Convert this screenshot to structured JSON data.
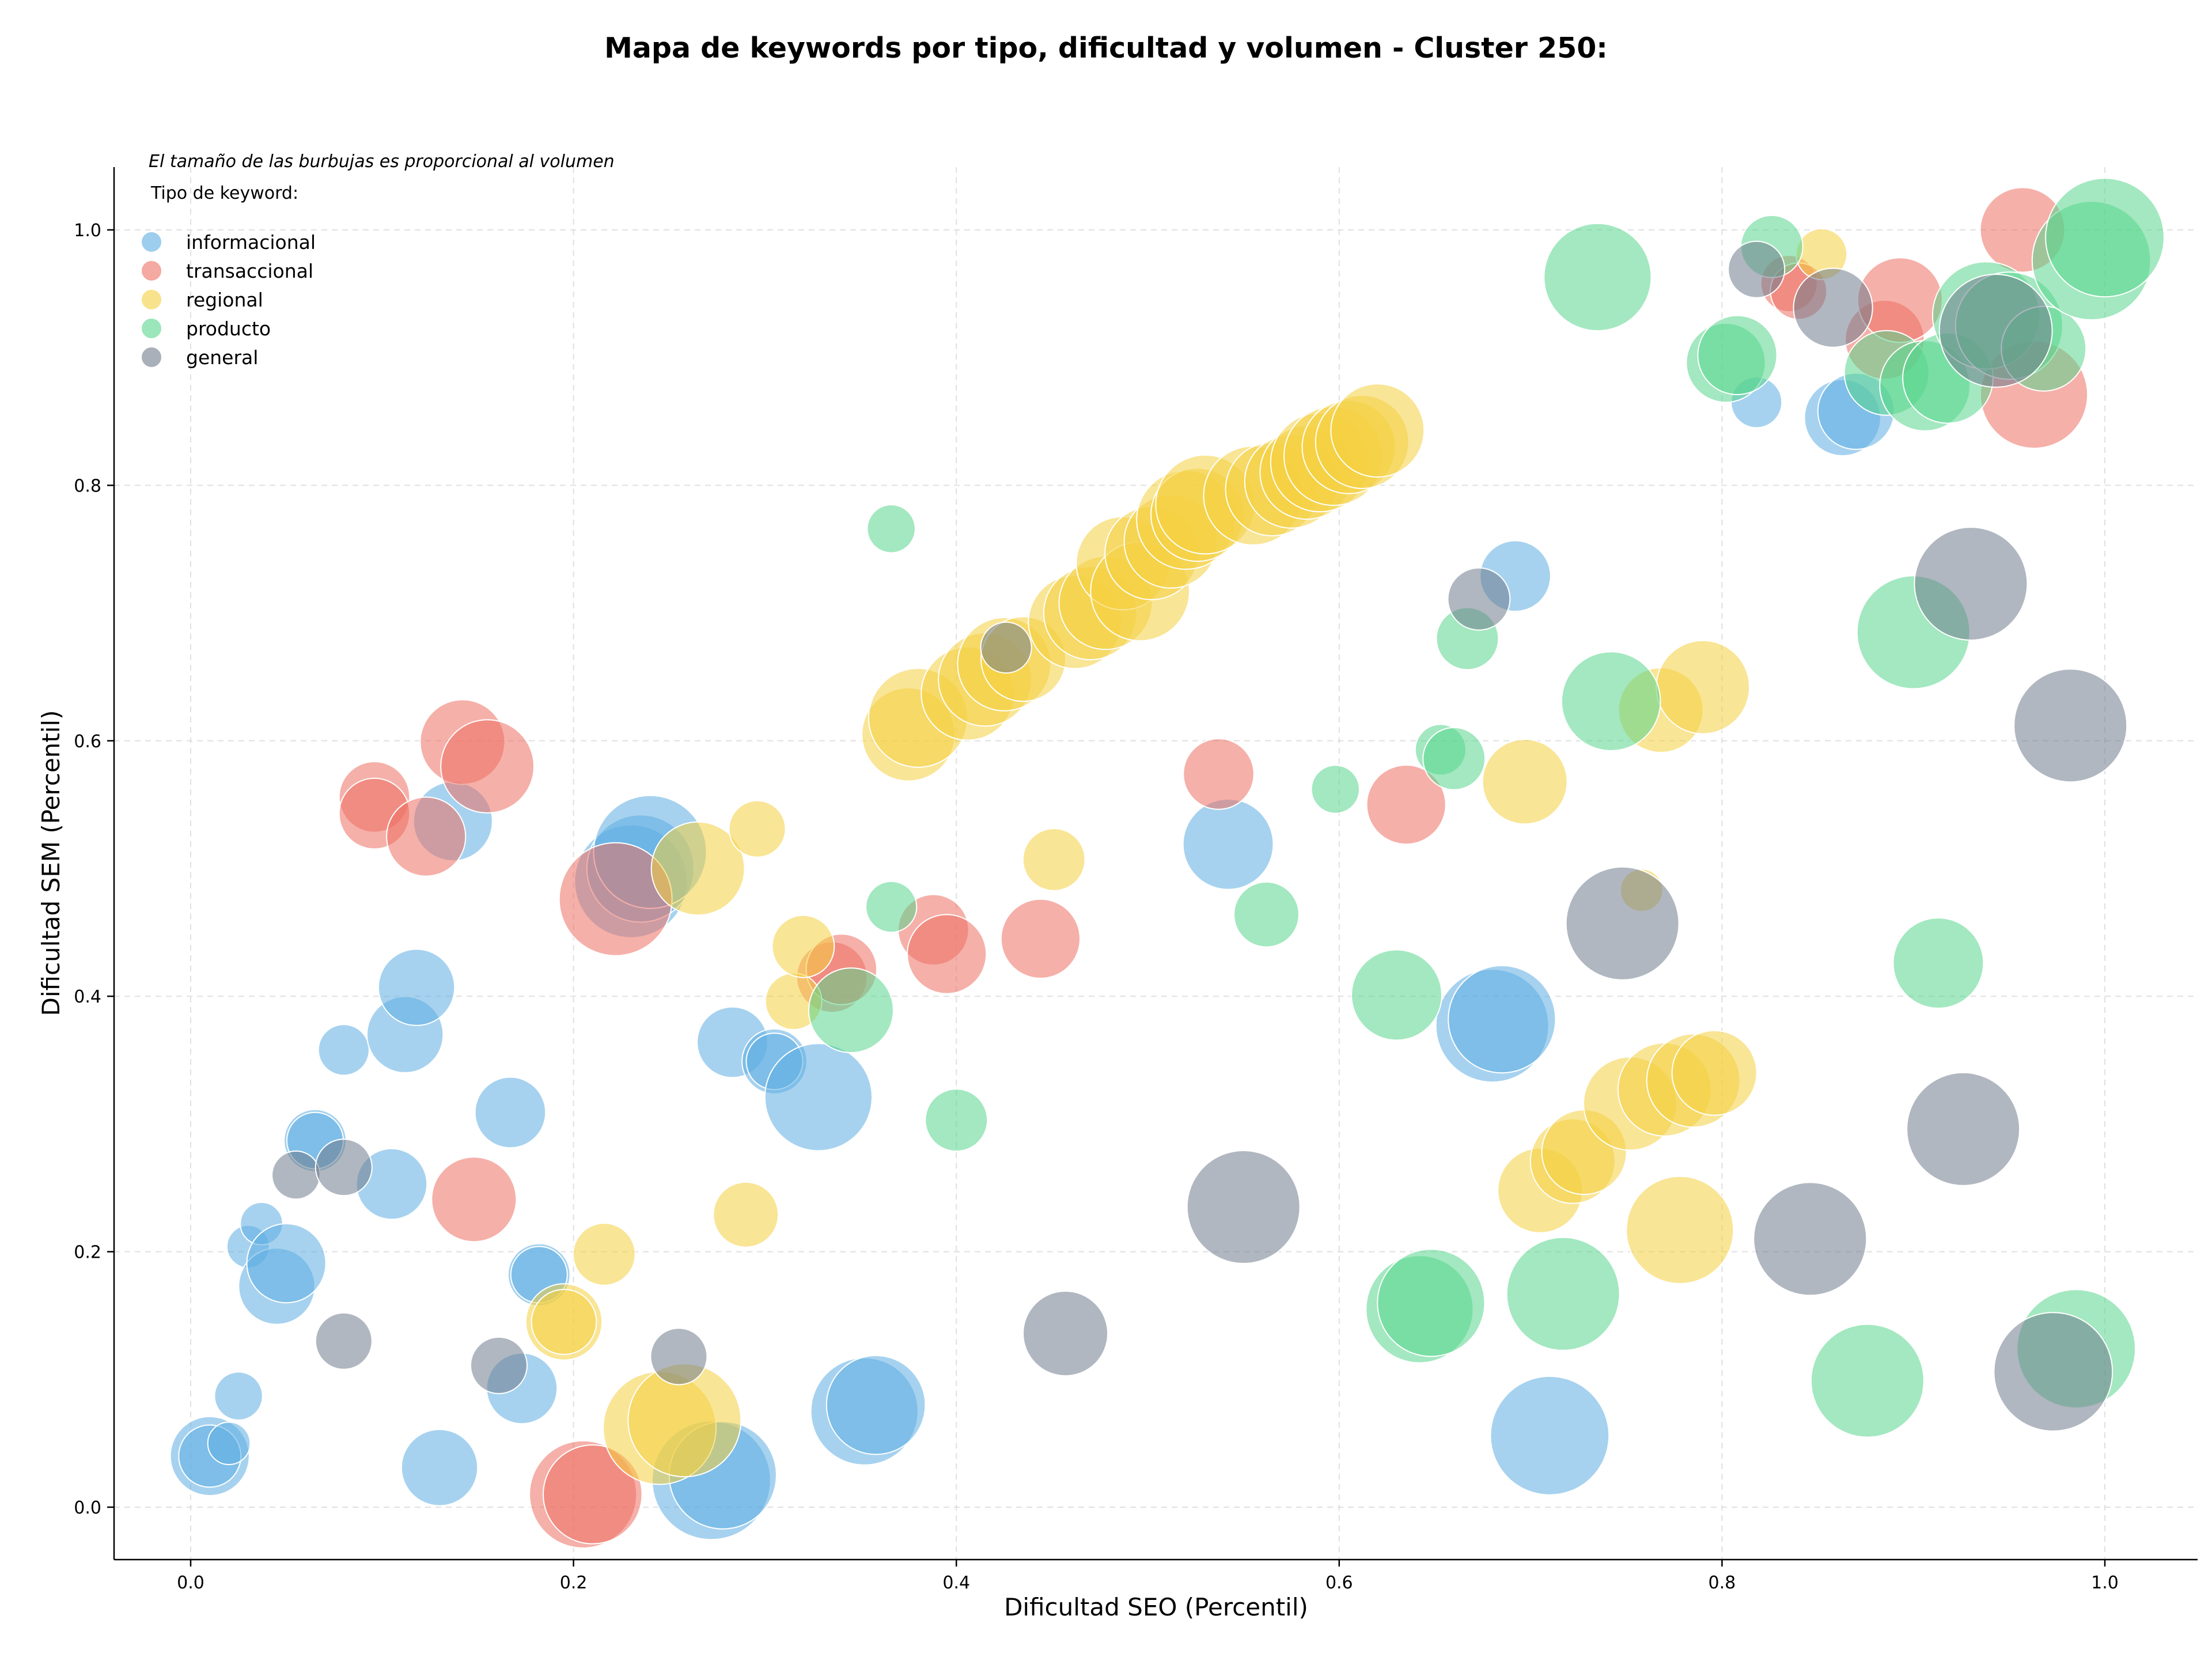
{
  "chart_data": {
    "type": "scatter",
    "title": "Mapa de keywords por tipo, dificultad y volumen - Cluster 250:",
    "xlabel": "Dificultad SEO (Percentil)",
    "ylabel": "Dificultad SEM (Percentil)",
    "xlim": [
      -0.04,
      1.05
    ],
    "ylim": [
      -0.04,
      1.05
    ],
    "xticks": [
      0.0,
      0.2,
      0.4,
      0.6,
      0.8,
      1.0
    ],
    "yticks": [
      0.0,
      0.2,
      0.4,
      0.6,
      0.8,
      1.0
    ],
    "xtick_labels": [
      "0.0",
      "0.2",
      "0.4",
      "0.6",
      "0.8",
      "1.0"
    ],
    "ytick_labels": [
      "0.0",
      "0.2",
      "0.4",
      "0.6",
      "0.8",
      "1.0"
    ],
    "grid": true,
    "note": "El tamaño de las burbujas es proporcional al volumen",
    "legend": {
      "title": "Tipo de keyword:",
      "placement": "top-left"
    },
    "series": [
      {
        "name": "informacional",
        "color": "#5dade2",
        "points": [
          [
            0.01,
            0.04,
            28
          ],
          [
            0.01,
            0.04,
            22
          ],
          [
            0.02,
            0.05,
            15
          ],
          [
            0.025,
            0.087,
            17
          ],
          [
            0.03,
            0.204,
            15
          ],
          [
            0.037,
            0.222,
            15
          ],
          [
            0.045,
            0.173,
            27
          ],
          [
            0.05,
            0.191,
            28
          ],
          [
            0.065,
            0.287,
            22
          ],
          [
            0.065,
            0.287,
            20
          ],
          [
            0.08,
            0.358,
            18
          ],
          [
            0.105,
            0.253,
            25
          ],
          [
            0.112,
            0.37,
            27
          ],
          [
            0.118,
            0.407,
            27
          ],
          [
            0.13,
            0.031,
            27
          ],
          [
            0.137,
            0.537,
            28
          ],
          [
            0.167,
            0.309,
            25
          ],
          [
            0.173,
            0.093,
            25
          ],
          [
            0.182,
            0.182,
            22
          ],
          [
            0.182,
            0.182,
            20
          ],
          [
            0.23,
            0.49,
            40
          ],
          [
            0.235,
            0.5,
            38
          ],
          [
            0.24,
            0.513,
            40
          ],
          [
            0.272,
            0.021,
            42
          ],
          [
            0.278,
            0.025,
            38
          ],
          [
            0.283,
            0.364,
            25
          ],
          [
            0.305,
            0.349,
            23
          ],
          [
            0.305,
            0.349,
            20
          ],
          [
            0.328,
            0.321,
            38
          ],
          [
            0.352,
            0.075,
            38
          ],
          [
            0.358,
            0.08,
            35
          ],
          [
            0.542,
            0.519,
            32
          ],
          [
            0.68,
            0.377,
            40
          ],
          [
            0.685,
            0.382,
            38
          ],
          [
            0.692,
            0.729,
            25
          ],
          [
            0.71,
            0.056,
            42
          ],
          [
            0.818,
            0.865,
            18
          ],
          [
            0.863,
            0.853,
            27
          ],
          [
            0.87,
            0.858,
            27
          ]
        ]
      },
      {
        "name": "transaccional",
        "color": "#ec7063",
        "points": [
          [
            0.096,
            0.556,
            25
          ],
          [
            0.096,
            0.543,
            25
          ],
          [
            0.123,
            0.525,
            28
          ],
          [
            0.142,
            0.599,
            30
          ],
          [
            0.155,
            0.58,
            33
          ],
          [
            0.148,
            0.241,
            30
          ],
          [
            0.205,
            0.01,
            38
          ],
          [
            0.21,
            0.01,
            35
          ],
          [
            0.222,
            0.476,
            40
          ],
          [
            0.335,
            0.415,
            25
          ],
          [
            0.34,
            0.421,
            25
          ],
          [
            0.388,
            0.452,
            25
          ],
          [
            0.395,
            0.433,
            28
          ],
          [
            0.444,
            0.445,
            28
          ],
          [
            0.537,
            0.574,
            25
          ],
          [
            0.635,
            0.55,
            28
          ],
          [
            0.835,
            0.958,
            20
          ],
          [
            0.84,
            0.952,
            20
          ],
          [
            0.885,
            0.914,
            28
          ],
          [
            0.893,
            0.945,
            30
          ],
          [
            0.957,
            1.0,
            30
          ],
          [
            0.963,
            0.871,
            38
          ]
        ]
      },
      {
        "name": "regional",
        "color": "#f4d03f",
        "points": [
          [
            0.195,
            0.145,
            27
          ],
          [
            0.195,
            0.145,
            23
          ],
          [
            0.216,
            0.198,
            22
          ],
          [
            0.245,
            0.062,
            40
          ],
          [
            0.258,
            0.068,
            40
          ],
          [
            0.265,
            0.5,
            33
          ],
          [
            0.29,
            0.229,
            23
          ],
          [
            0.296,
            0.531,
            20
          ],
          [
            0.315,
            0.396,
            20
          ],
          [
            0.32,
            0.439,
            22
          ],
          [
            0.375,
            0.605,
            33
          ],
          [
            0.38,
            0.618,
            35
          ],
          [
            0.406,
            0.637,
            33
          ],
          [
            0.415,
            0.648,
            33
          ],
          [
            0.425,
            0.66,
            33
          ],
          [
            0.435,
            0.664,
            30
          ],
          [
            0.451,
            0.507,
            22
          ],
          [
            0.462,
            0.693,
            33
          ],
          [
            0.47,
            0.7,
            33
          ],
          [
            0.478,
            0.708,
            33
          ],
          [
            0.487,
            0.739,
            33
          ],
          [
            0.496,
            0.717,
            35
          ],
          [
            0.502,
            0.747,
            33
          ],
          [
            0.512,
            0.756,
            33
          ],
          [
            0.52,
            0.773,
            35
          ],
          [
            0.526,
            0.777,
            33
          ],
          [
            0.53,
            0.785,
            35
          ],
          [
            0.555,
            0.792,
            35
          ],
          [
            0.565,
            0.797,
            33
          ],
          [
            0.575,
            0.803,
            33
          ],
          [
            0.583,
            0.81,
            33
          ],
          [
            0.59,
            0.818,
            35
          ],
          [
            0.597,
            0.823,
            35
          ],
          [
            0.605,
            0.83,
            33
          ],
          [
            0.612,
            0.834,
            33
          ],
          [
            0.62,
            0.843,
            33
          ],
          [
            0.697,
            0.568,
            30
          ],
          [
            0.705,
            0.248,
            30
          ],
          [
            0.722,
            0.271,
            30
          ],
          [
            0.728,
            0.278,
            30
          ],
          [
            0.752,
            0.316,
            33
          ],
          [
            0.758,
            0.483,
            15
          ],
          [
            0.768,
            0.624,
            30
          ],
          [
            0.77,
            0.327,
            33
          ],
          [
            0.785,
            0.334,
            33
          ],
          [
            0.778,
            0.217,
            38
          ],
          [
            0.79,
            0.642,
            33
          ],
          [
            0.796,
            0.34,
            30
          ],
          [
            0.852,
            0.981,
            18
          ]
        ]
      },
      {
        "name": "producto",
        "color": "#58d68d",
        "points": [
          [
            0.345,
            0.389,
            30
          ],
          [
            0.366,
            0.766,
            17
          ],
          [
            0.366,
            0.47,
            18
          ],
          [
            0.4,
            0.303,
            22
          ],
          [
            0.562,
            0.464,
            23
          ],
          [
            0.598,
            0.562,
            17
          ],
          [
            0.63,
            0.401,
            32
          ],
          [
            0.642,
            0.155,
            38
          ],
          [
            0.648,
            0.16,
            38
          ],
          [
            0.653,
            0.593,
            18
          ],
          [
            0.66,
            0.586,
            22
          ],
          [
            0.667,
            0.68,
            22
          ],
          [
            0.717,
            0.167,
            40
          ],
          [
            0.735,
            0.963,
            38
          ],
          [
            0.742,
            0.631,
            35
          ],
          [
            0.802,
            0.896,
            28
          ],
          [
            0.808,
            0.902,
            28
          ],
          [
            0.826,
            0.987,
            22
          ],
          [
            0.876,
            0.099,
            40
          ],
          [
            0.886,
            0.888,
            30
          ],
          [
            0.9,
            0.685,
            40
          ],
          [
            0.906,
            0.878,
            32
          ],
          [
            0.918,
            0.884,
            32
          ],
          [
            0.913,
            0.426,
            32
          ],
          [
            0.938,
            0.933,
            38
          ],
          [
            0.95,
            0.925,
            38
          ],
          [
            0.968,
            0.907,
            30
          ],
          [
            0.985,
            0.124,
            42
          ],
          [
            0.993,
            0.976,
            42
          ],
          [
            1.0,
            0.994,
            42
          ]
        ]
      },
      {
        "name": "general",
        "color": "#707b8c",
        "points": [
          [
            0.055,
            0.26,
            17
          ],
          [
            0.08,
            0.266,
            20
          ],
          [
            0.08,
            0.13,
            20
          ],
          [
            0.161,
            0.111,
            20
          ],
          [
            0.255,
            0.118,
            20
          ],
          [
            0.426,
            0.673,
            18
          ],
          [
            0.457,
            0.136,
            30
          ],
          [
            0.55,
            0.235,
            40
          ],
          [
            0.673,
            0.711,
            22
          ],
          [
            0.748,
            0.457,
            40
          ],
          [
            0.818,
            0.969,
            20
          ],
          [
            0.846,
            0.21,
            40
          ],
          [
            0.858,
            0.939,
            28
          ],
          [
            0.926,
            0.296,
            40
          ],
          [
            0.93,
            0.723,
            40
          ],
          [
            0.943,
            0.921,
            40
          ],
          [
            0.973,
            0.106,
            42
          ],
          [
            0.982,
            0.612,
            40
          ]
        ]
      }
    ]
  }
}
